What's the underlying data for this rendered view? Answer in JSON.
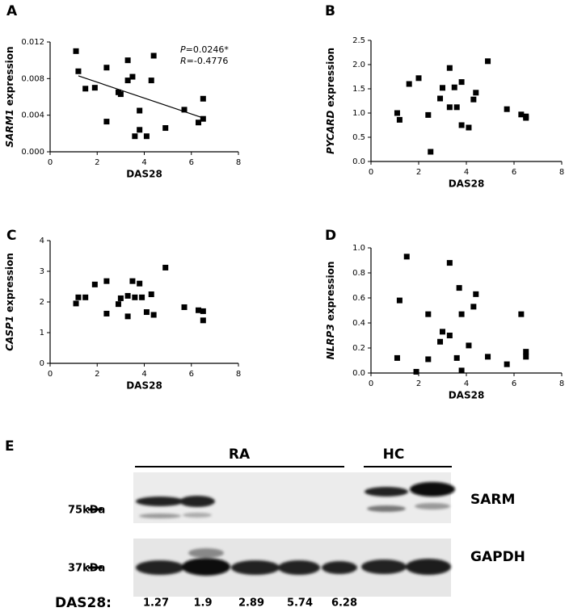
{
  "chart_data": [
    {
      "type": "scatter",
      "panel": "A",
      "xlabel": "DAS28",
      "ylabel": [
        "SARM1",
        "expression"
      ],
      "annotations": [
        [
          "P",
          "=0.0246*"
        ],
        [
          "R",
          "=-0.4776"
        ]
      ],
      "color": "#000000",
      "x": [
        1.1,
        1.2,
        1.5,
        1.9,
        2.4,
        2.4,
        2.9,
        3.0,
        3.3,
        3.3,
        3.5,
        3.6,
        3.8,
        3.8,
        4.1,
        4.3,
        4.4,
        4.9,
        5.7,
        6.3,
        6.5,
        6.5
      ],
      "values": [
        0.011,
        0.0088,
        0.0069,
        0.007,
        0.0033,
        0.0092,
        0.0065,
        0.0063,
        0.0078,
        0.01,
        0.0082,
        0.0017,
        0.0024,
        0.0045,
        0.0017,
        0.0078,
        0.0105,
        0.0026,
        0.0046,
        0.0032,
        0.0036,
        0.0058
      ],
      "trendline": {
        "x": [
          1.2,
          6.5
        ],
        "values": [
          0.0083,
          0.0037
        ]
      },
      "xlim": [
        0,
        8
      ],
      "xticks": [
        0,
        2,
        4,
        6,
        8
      ],
      "ylim": [
        0,
        0.012
      ],
      "yticks": [
        {
          "value": 0,
          "label": "0.000"
        },
        {
          "value": 0.004,
          "label": "0.004"
        },
        {
          "value": 0.008,
          "label": "0.008"
        },
        {
          "value": 0.012,
          "label": "0.012"
        }
      ]
    },
    {
      "type": "scatter",
      "panel": "B",
      "xlabel": "DAS28",
      "ylabel": [
        "PYCARD",
        "expression"
      ],
      "color": "#000000",
      "x": [
        1.1,
        1.2,
        1.6,
        2.0,
        2.4,
        2.5,
        2.9,
        3.0,
        3.3,
        3.3,
        3.5,
        3.6,
        3.8,
        3.8,
        4.1,
        4.3,
        4.4,
        4.9,
        5.7,
        6.3,
        6.5,
        6.5
      ],
      "values": [
        1.0,
        0.86,
        1.6,
        1.72,
        0.96,
        0.2,
        1.3,
        1.52,
        1.12,
        1.93,
        1.53,
        1.12,
        0.75,
        1.64,
        0.7,
        1.28,
        1.42,
        2.07,
        1.08,
        0.97,
        0.9,
        0.93
      ],
      "xlim": [
        0,
        8
      ],
      "xticks": [
        0,
        2,
        4,
        6,
        8
      ],
      "ylim": [
        0,
        2.5
      ],
      "yticks": [
        {
          "value": 0,
          "label": "0.0"
        },
        0.5,
        {
          "value": 1,
          "label": "1.0"
        },
        1.5,
        {
          "value": 2,
          "label": "2.0"
        },
        2.5
      ]
    },
    {
      "type": "scatter",
      "panel": "C",
      "xlabel": "DAS28",
      "ylabel": [
        "CASP1",
        "expression"
      ],
      "color": "#000000",
      "x": [
        1.1,
        1.2,
        1.5,
        1.9,
        2.4,
        2.4,
        2.9,
        3.0,
        3.3,
        3.3,
        3.5,
        3.6,
        3.8,
        3.9,
        4.1,
        4.3,
        4.4,
        4.9,
        5.7,
        6.3,
        6.5,
        6.5
      ],
      "values": [
        1.95,
        2.15,
        2.15,
        2.57,
        1.62,
        2.68,
        1.93,
        2.12,
        1.53,
        2.2,
        2.68,
        2.15,
        2.6,
        2.15,
        1.67,
        2.25,
        1.58,
        3.12,
        1.83,
        1.73,
        1.4,
        1.7
      ],
      "xlim": [
        0,
        8
      ],
      "xticks": [
        0,
        2,
        4,
        6,
        8
      ],
      "ylim": [
        0,
        4
      ],
      "yticks": [
        0,
        1,
        2,
        3,
        4
      ]
    },
    {
      "type": "scatter",
      "panel": "D",
      "xlabel": "DAS28",
      "ylabel": [
        "NLRP3",
        "expression"
      ],
      "color": "#000000",
      "x": [
        1.1,
        1.2,
        1.5,
        1.9,
        2.4,
        2.4,
        2.9,
        3.0,
        3.3,
        3.3,
        3.6,
        3.7,
        3.8,
        3.8,
        4.1,
        4.3,
        4.4,
        4.9,
        5.7,
        6.3,
        6.5,
        6.5
      ],
      "values": [
        0.12,
        0.58,
        0.93,
        0.01,
        0.47,
        0.11,
        0.25,
        0.33,
        0.88,
        0.3,
        0.12,
        0.68,
        0.02,
        0.47,
        0.22,
        0.53,
        0.63,
        0.13,
        0.07,
        0.47,
        0.13,
        0.17
      ],
      "xlim": [
        0,
        8
      ],
      "xticks": [
        0,
        2,
        4,
        6,
        8
      ],
      "ylim": [
        0,
        1
      ],
      "yticks": [
        {
          "value": 0,
          "label": "0.0"
        },
        0.2,
        0.4,
        0.6,
        0.8,
        {
          "value": 1,
          "label": "1.0"
        }
      ]
    }
  ],
  "blot": {
    "panel": "E",
    "groups": [
      "RA",
      "HC"
    ],
    "bands": [
      "SARM",
      "GAPDH"
    ],
    "markers": [
      "75kDa",
      "37kDa"
    ],
    "row_label": "DAS28:",
    "das28": [
      "1.27",
      "1.9",
      "2.89",
      "5.74",
      "6.28"
    ]
  }
}
